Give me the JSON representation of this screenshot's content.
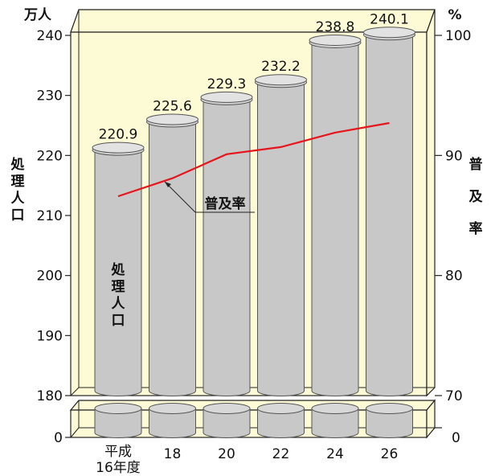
{
  "chart_data": {
    "type": "bar",
    "categories": [
      "平成\n16年度",
      "18",
      "20",
      "22",
      "24",
      "26"
    ],
    "series": [
      {
        "axis": "left",
        "values": [
          220.9,
          225.6,
          229.3,
          232.2,
          238.8,
          240.1
        ],
        "value_labels": [
          "220.9",
          "225.6",
          "229.3",
          "232.2",
          "238.8",
          "240.1"
        ]
      },
      {
        "axis": "right",
        "values": [
          86.6,
          88.1,
          90.1,
          90.7,
          91.9,
          92.7
        ]
      }
    ],
    "left_axis": {
      "unit": "万人",
      "ylabel": "処理人口",
      "ticks": [
        180,
        190,
        200,
        210,
        220,
        230,
        240
      ],
      "zero_tick": 0,
      "ylim": [
        180,
        240
      ]
    },
    "right_axis": {
      "unit": "%",
      "ylabel": "普及率",
      "ticks": [
        70,
        80,
        90,
        100
      ],
      "zero_tick": 0,
      "ylim": [
        70,
        100
      ]
    },
    "annotations": {
      "bar_label": "処理人口",
      "line_label": "普及率"
    },
    "axis_break": true,
    "grid": false,
    "colors": {
      "panel": "#fdfbd6",
      "bar": "#c8c8c8",
      "line": "#e8141c"
    }
  }
}
